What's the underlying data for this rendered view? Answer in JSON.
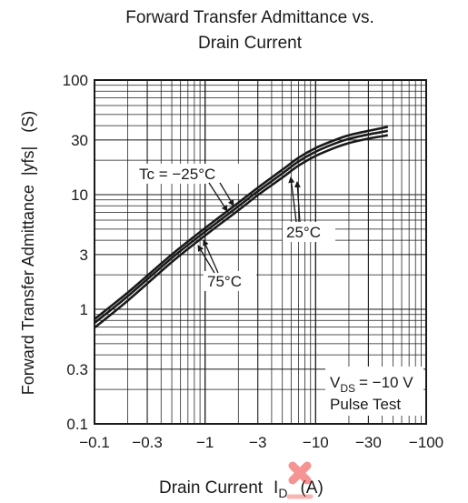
{
  "chart_data": {
    "type": "line",
    "title_lines": [
      "Forward Transfer Admittance vs.",
      "Drain Current"
    ],
    "xlabel": {
      "main": "Drain Current",
      "symbol": "I",
      "subscript": "D",
      "unit": "(A)"
    },
    "ylabel": "Forward Transfer Admittance  |yfs|   (S)",
    "x_scale": "log",
    "y_scale": "log",
    "xlim": [
      -0.1,
      -100
    ],
    "ylim": [
      0.1,
      100
    ],
    "grid": true,
    "x_ticks": [
      {
        "value": 0.1,
        "label": "−0.1"
      },
      {
        "value": 0.3,
        "label": "−0.3"
      },
      {
        "value": 1,
        "label": "−1"
      },
      {
        "value": 3,
        "label": "−3"
      },
      {
        "value": 10,
        "label": "−10"
      },
      {
        "value": 30,
        "label": "−30"
      },
      {
        "value": 100,
        "label": "−100"
      }
    ],
    "y_ticks": [
      {
        "value": 0.1,
        "label": "0.1"
      },
      {
        "value": 0.3,
        "label": "0.3"
      },
      {
        "value": 1,
        "label": "1"
      },
      {
        "value": 3,
        "label": "3"
      },
      {
        "value": 10,
        "label": "10"
      },
      {
        "value": 30,
        "label": "30"
      },
      {
        "value": 100,
        "label": "100"
      }
    ],
    "series": [
      {
        "name": "Tc = −25°C",
        "x": [
          -0.1,
          -0.2,
          -0.5,
          -1,
          -2,
          -3,
          -5,
          -7,
          -10,
          -15,
          -20,
          -30,
          -45
        ],
        "y": [
          0.82,
          1.4,
          3.0,
          5.1,
          8.5,
          11.5,
          16.5,
          21,
          25.5,
          30,
          33,
          36,
          39
        ]
      },
      {
        "name": "25°C",
        "x": [
          -0.1,
          -0.2,
          -0.5,
          -1,
          -2,
          -3,
          -5,
          -7,
          -10,
          -15,
          -20,
          -30,
          -45
        ],
        "y": [
          0.76,
          1.3,
          2.8,
          4.75,
          7.9,
          10.7,
          15.3,
          19.5,
          23.7,
          28,
          30.7,
          33.5,
          36
        ]
      },
      {
        "name": "75°C",
        "x": [
          -0.1,
          -0.2,
          -0.5,
          -1,
          -2,
          -3,
          -5,
          -7,
          -10,
          -15,
          -20,
          -30,
          -45
        ],
        "y": [
          0.69,
          1.19,
          2.58,
          4.4,
          7.3,
          9.9,
          14.1,
          17.9,
          21.8,
          25.7,
          28.2,
          30.8,
          33
        ]
      }
    ],
    "annotations": {
      "tc_label": "Tc = −25°C",
      "t25_label": "25°C",
      "t75_label": "75°C",
      "vds_label": {
        "symbol": "V",
        "subscript": "DS",
        "value": "= −10 V"
      },
      "pulse_label": "Pulse Test"
    },
    "colors": {
      "line": "#1a1a1a",
      "grid": "#1a1a1a",
      "watermark": "#f03c3c"
    }
  }
}
